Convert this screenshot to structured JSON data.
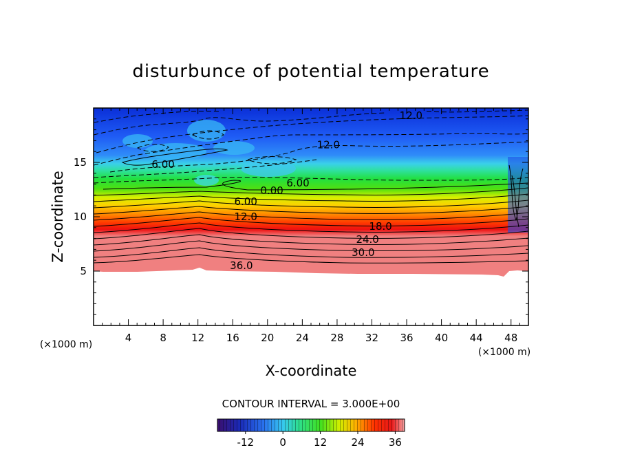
{
  "chart_data": {
    "type": "heatmap",
    "title": "disturbunce of potential temperature",
    "xlabel": "X-coordinate",
    "ylabel": "Z-coordinate",
    "x_unit": "(×1000 m)",
    "y_unit": "(×1000 m)",
    "xlim": [
      0,
      50
    ],
    "ylim": [
      0,
      20
    ],
    "x_ticks": [
      4,
      8,
      12,
      16,
      20,
      24,
      28,
      32,
      36,
      40,
      44,
      48
    ],
    "y_ticks": [
      5,
      10,
      15
    ],
    "contour_interval_text": "CONTOUR INTERVAL = 3.000E+00",
    "colorbar": {
      "range": [
        -21,
        39
      ],
      "tick_values": [
        -12,
        0,
        12,
        24,
        36
      ],
      "tick_labels": [
        "-12",
        "0",
        "12",
        "24",
        "36"
      ]
    },
    "contour_labels": [
      {
        "text": "12.0",
        "x": 36.5,
        "z": 19.3
      },
      {
        "text": "12.0",
        "x": 27.0,
        "z": 16.6
      },
      {
        "text": "6.00",
        "x": 8.0,
        "z": 14.8
      },
      {
        "text": "6.00",
        "x": 23.5,
        "z": 13.1
      },
      {
        "text": "0.00",
        "x": 20.5,
        "z": 12.4
      },
      {
        "text": "6.00",
        "x": 17.5,
        "z": 11.4
      },
      {
        "text": "12.0",
        "x": 17.5,
        "z": 10.0
      },
      {
        "text": "18.0",
        "x": 33.0,
        "z": 9.1
      },
      {
        "text": "24.0",
        "x": 31.5,
        "z": 7.9
      },
      {
        "text": "30.0",
        "x": 31.0,
        "z": 6.7
      },
      {
        "text": "36.0",
        "x": 17.0,
        "z": 5.5
      }
    ]
  }
}
